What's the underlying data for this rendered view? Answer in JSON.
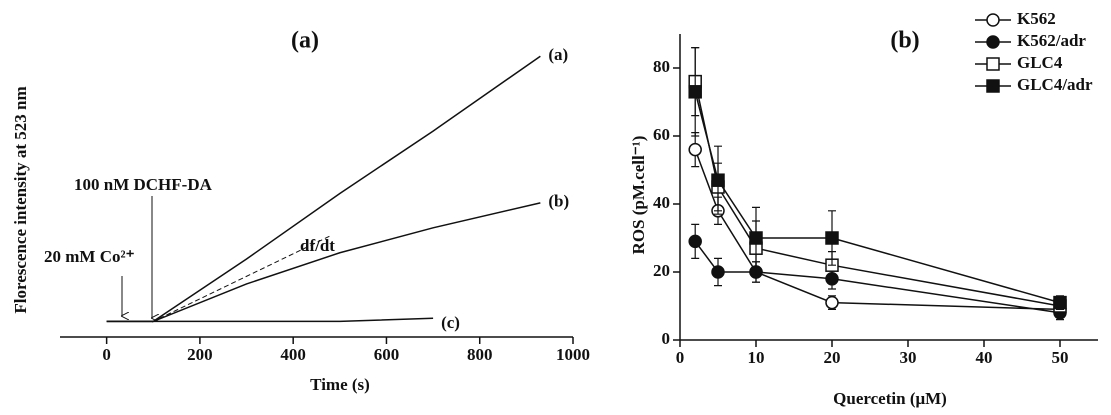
{
  "chart_data": [
    {
      "type": "line",
      "title": "(a)",
      "x_label": "Time (s)",
      "y_label": "Florescence intensity at 523 nm",
      "x": [
        0,
        100,
        300,
        500,
        700,
        930
      ],
      "series": [
        {
          "name": "(a)",
          "color": "#111111",
          "values": [
            5,
            5,
            25,
            46,
            66,
            90
          ]
        },
        {
          "name": "(b)",
          "color": "#111111",
          "values": [
            5,
            5,
            17,
            27,
            35,
            43
          ]
        },
        {
          "name": "(c)",
          "color": "#111111",
          "values": [
            5,
            5,
            5,
            5,
            6,
            null
          ]
        }
      ],
      "xlim": [
        -100,
        1000
      ],
      "xticks": [
        0,
        200,
        400,
        600,
        800,
        1000
      ],
      "ylim": [
        0,
        100
      ],
      "annotations": [
        "100 nM DCHF-DA",
        "20 mM Co²⁺",
        "df/dt"
      ]
    },
    {
      "type": "line",
      "title": "(b)",
      "x_label": "Quercetin (μM)",
      "y_label": "ROS (pM.cell⁻¹)",
      "x": [
        2,
        5,
        10,
        20,
        50
      ],
      "series": [
        {
          "name": "K562",
          "color": "#111111",
          "marker": "circle",
          "filled": false,
          "values": [
            56,
            38,
            20,
            11,
            9
          ],
          "errors": [
            5,
            4,
            3,
            2,
            1
          ]
        },
        {
          "name": "K562/adr",
          "color": "#111111",
          "marker": "circle",
          "filled": true,
          "values": [
            29,
            20,
            20,
            18,
            8
          ],
          "errors": [
            5,
            4,
            3,
            3,
            2
          ]
        },
        {
          "name": "GLC4",
          "color": "#111111",
          "marker": "square",
          "filled": false,
          "values": [
            76,
            45,
            27,
            22,
            10
          ],
          "errors": [
            10,
            7,
            8,
            4,
            2
          ]
        },
        {
          "name": "GLC4/adr",
          "color": "#111111",
          "marker": "square",
          "filled": true,
          "values": [
            73,
            47,
            30,
            30,
            11
          ],
          "errors": [
            13,
            10,
            9,
            8,
            2
          ]
        }
      ],
      "xlim": [
        0,
        55
      ],
      "xticks": [
        0,
        10,
        20,
        30,
        40,
        50
      ],
      "ylim": [
        0,
        90
      ],
      "yticks": [
        0,
        20,
        40,
        60,
        80
      ]
    }
  ]
}
